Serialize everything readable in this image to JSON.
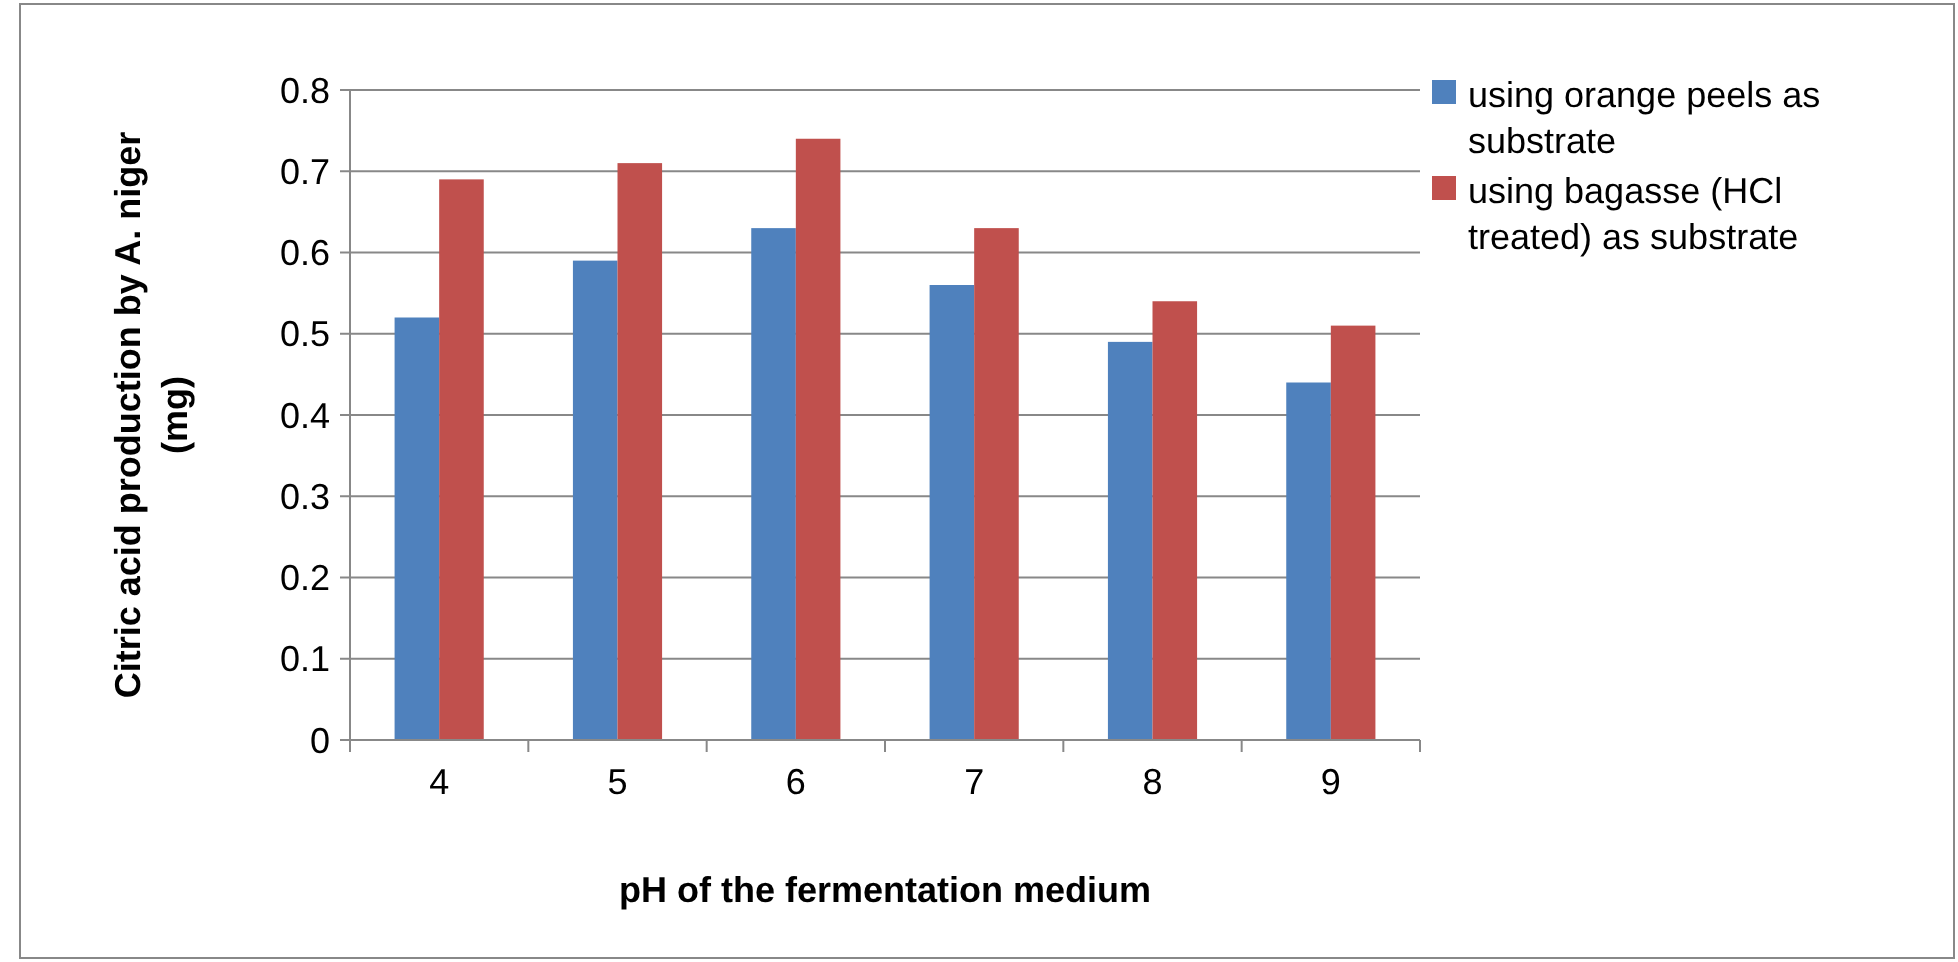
{
  "chart_data": {
    "type": "bar",
    "xlabel": "pH of the fermentation medium",
    "ylabel": "Citric acid production by A. niger (mg)",
    "categories": [
      "4",
      "5",
      "6",
      "7",
      "8",
      "9"
    ],
    "series": [
      {
        "name": "using orange peels as substrate",
        "color": "#4f81bd",
        "values": [
          0.52,
          0.59,
          0.63,
          0.56,
          0.49,
          0.44
        ]
      },
      {
        "name": "using bagasse (HCl treated) as substrate",
        "color": "#c0504d",
        "values": [
          0.69,
          0.71,
          0.74,
          0.63,
          0.54,
          0.51
        ]
      }
    ],
    "ylim": [
      0,
      0.8
    ],
    "yticks": [
      0,
      0.1,
      0.2,
      0.3,
      0.4,
      0.5,
      0.6,
      0.7,
      0.8
    ],
    "grid": "y",
    "legend": "right"
  }
}
